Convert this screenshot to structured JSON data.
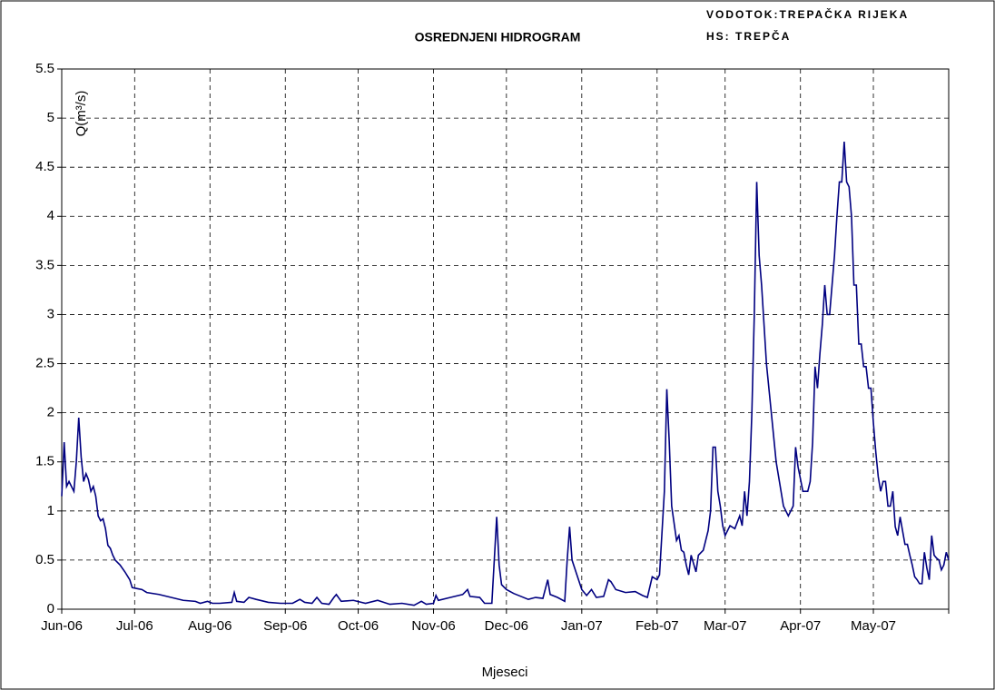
{
  "chart_data": {
    "type": "line",
    "title": "OSREDNJENI HIDROGRAM",
    "annotations": [
      "VODOTOK:TREPAČKA RIJEKA",
      "HS: TREPČA"
    ],
    "y_label": "Q(m³/s)",
    "x_label": "Mjeseci",
    "color": "#000080",
    "grid": true,
    "xlim": [
      0,
      365
    ],
    "ylim": [
      0,
      5.5
    ],
    "yticks": [
      0,
      0.5,
      1,
      1.5,
      2,
      2.5,
      3,
      3.5,
      4,
      4.5,
      5,
      5.5
    ],
    "xticks": [
      {
        "value": 0,
        "label": "Jun-06"
      },
      {
        "value": 30,
        "label": "Jul-06"
      },
      {
        "value": 61,
        "label": "Aug-06"
      },
      {
        "value": 92,
        "label": "Sep-06"
      },
      {
        "value": 122,
        "label": "Oct-06"
      },
      {
        "value": 153,
        "label": "Nov-06"
      },
      {
        "value": 183,
        "label": "Dec-06"
      },
      {
        "value": 214,
        "label": "Jan-07"
      },
      {
        "value": 245,
        "label": "Feb-07"
      },
      {
        "value": 273,
        "label": "Mar-07"
      },
      {
        "value": 304,
        "label": "Apr-07"
      },
      {
        "value": 334,
        "label": "May-07"
      },
      365
    ],
    "x": [
      0,
      1,
      2,
      3,
      4,
      5,
      6,
      7,
      8,
      9,
      10,
      11,
      12,
      13,
      14,
      15,
      16,
      17,
      18,
      19,
      20,
      21,
      22,
      24,
      26,
      28,
      29,
      31,
      33,
      35,
      40,
      45,
      50,
      55,
      57,
      60,
      62,
      65,
      70,
      71,
      72,
      75,
      77,
      80,
      85,
      90,
      95,
      98,
      100,
      103,
      105,
      107,
      110,
      112,
      113,
      115,
      120,
      125,
      130,
      135,
      140,
      145,
      148,
      150,
      153,
      154,
      155,
      160,
      165,
      167,
      168,
      172,
      174,
      177,
      178,
      179,
      180,
      181,
      183,
      186,
      189,
      192,
      195,
      198,
      200,
      201,
      204,
      207,
      208,
      209,
      210,
      212,
      214,
      216,
      218,
      220,
      223,
      225,
      226,
      228,
      232,
      236,
      239,
      241,
      243,
      245,
      246,
      248,
      249,
      250,
      251,
      253,
      254,
      255,
      256,
      257,
      258,
      259,
      261,
      262,
      264,
      266,
      267,
      268,
      269,
      270,
      271,
      272,
      273,
      275,
      277,
      279,
      280,
      281,
      282,
      283,
      284,
      285,
      286,
      287,
      288,
      289,
      290,
      292,
      294,
      296,
      297,
      298,
      299,
      301,
      302,
      303,
      305,
      307,
      308,
      309,
      310,
      311,
      312,
      313,
      314,
      315,
      316,
      317,
      318,
      319,
      320,
      321,
      322,
      323,
      324,
      325,
      326,
      327,
      328,
      329,
      330,
      331,
      332,
      333,
      334,
      335,
      336,
      337,
      338,
      339,
      340,
      341,
      342,
      343,
      344,
      345,
      346,
      347,
      348,
      349,
      350,
      351,
      352,
      353,
      354,
      355,
      356,
      357,
      358,
      359,
      360,
      361,
      362,
      363,
      364,
      365
    ],
    "values": [
      1.15,
      1.7,
      1.25,
      1.3,
      1.25,
      1.2,
      1.5,
      1.95,
      1.55,
      1.3,
      1.38,
      1.32,
      1.2,
      1.25,
      1.15,
      0.95,
      0.9,
      0.92,
      0.82,
      0.65,
      0.62,
      0.55,
      0.5,
      0.45,
      0.38,
      0.3,
      0.22,
      0.21,
      0.2,
      0.17,
      0.15,
      0.12,
      0.09,
      0.08,
      0.06,
      0.08,
      0.06,
      0.06,
      0.07,
      0.17,
      0.08,
      0.07,
      0.12,
      0.1,
      0.07,
      0.06,
      0.06,
      0.1,
      0.07,
      0.06,
      0.12,
      0.06,
      0.05,
      0.12,
      0.15,
      0.08,
      0.09,
      0.06,
      0.09,
      0.05,
      0.06,
      0.04,
      0.08,
      0.05,
      0.06,
      0.14,
      0.09,
      0.12,
      0.15,
      0.2,
      0.13,
      0.12,
      0.06,
      0.06,
      0.5,
      0.94,
      0.45,
      0.25,
      0.2,
      0.16,
      0.13,
      0.1,
      0.12,
      0.11,
      0.3,
      0.15,
      0.12,
      0.08,
      0.5,
      0.84,
      0.5,
      0.35,
      0.2,
      0.14,
      0.2,
      0.12,
      0.13,
      0.3,
      0.28,
      0.2,
      0.17,
      0.18,
      0.14,
      0.12,
      0.33,
      0.3,
      0.35,
      1.2,
      2.24,
      1.7,
      1.05,
      0.7,
      0.75,
      0.6,
      0.58,
      0.45,
      0.35,
      0.55,
      0.38,
      0.55,
      0.6,
      0.8,
      1.0,
      1.65,
      1.65,
      1.2,
      1.05,
      0.85,
      0.75,
      0.85,
      0.82,
      0.95,
      0.85,
      1.2,
      0.95,
      1.3,
      2.0,
      3.0,
      4.35,
      3.6,
      3.3,
      2.9,
      2.5,
      2.0,
      1.5,
      1.2,
      1.05,
      1.0,
      0.95,
      1.05,
      1.65,
      1.45,
      1.2,
      1.2,
      1.3,
      1.7,
      2.47,
      2.25,
      2.6,
      2.9,
      3.3,
      3.0,
      3.0,
      3.3,
      3.6,
      4.0,
      4.35,
      4.35,
      4.76,
      4.35,
      4.3,
      4.0,
      3.3,
      3.3,
      2.7,
      2.7,
      2.47,
      2.47,
      2.25,
      2.25,
      1.9,
      1.6,
      1.35,
      1.2,
      1.3,
      1.3,
      1.05,
      1.05,
      1.2,
      0.84,
      0.75,
      0.94,
      0.8,
      0.66,
      0.66,
      0.55,
      0.45,
      0.33,
      0.3,
      0.26,
      0.26,
      0.58,
      0.42,
      0.3,
      0.75,
      0.55,
      0.52,
      0.5,
      0.4,
      0.45,
      0.58,
      0.5
    ]
  }
}
